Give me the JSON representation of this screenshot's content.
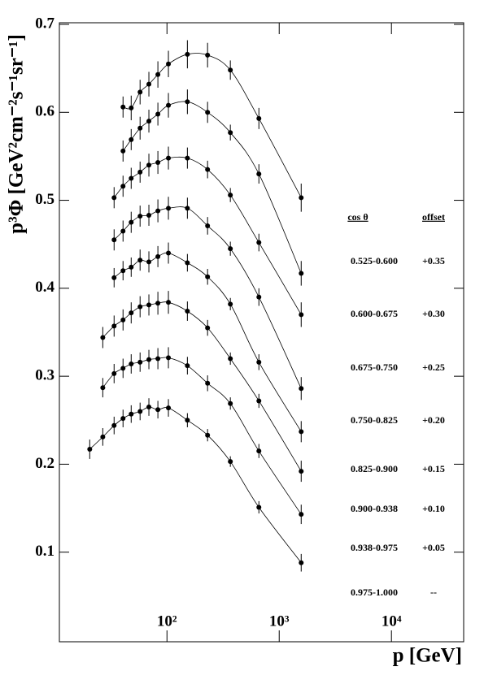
{
  "chart_data": {
    "type": "scatter",
    "y_label": "p³Φ [GeV²cm⁻²s⁻¹sr⁻¹]",
    "x_label": "p [GeV]",
    "log_x": true,
    "x": [
      20.5,
      26.8,
      33.8,
      40.6,
      48,
      57.6,
      69,
      83,
      103,
      152,
      230,
      367,
      659,
      1570
    ],
    "xlim": [
      11,
      44000
    ],
    "xticks": [
      {
        "value": 100,
        "label": "10²"
      },
      {
        "value": 1000,
        "label": "10³"
      },
      {
        "value": 10000,
        "label": "10⁴"
      }
    ],
    "ylim": [
      0,
      0.7
    ],
    "yticks": [
      0.1,
      0.2,
      0.3,
      0.4,
      0.5,
      0.6,
      0.7
    ],
    "legend_headers": [
      "cos θ",
      "offset"
    ],
    "series": [
      {
        "name": "0.525-0.600",
        "offset": "+0.35",
        "color": "#000000",
        "values": [
          null,
          null,
          null,
          0.606,
          0.605,
          0.623,
          0.632,
          0.643,
          0.655,
          0.666,
          0.665,
          0.648,
          0.593,
          0.503
        ],
        "errors": [
          null,
          null,
          null,
          0.012,
          0.014,
          0.014,
          0.014,
          0.015,
          0.015,
          0.016,
          0.014,
          0.011,
          0.012,
          0.016
        ]
      },
      {
        "name": "0.600-0.675",
        "offset": "+0.30",
        "color": "#000000",
        "values": [
          null,
          null,
          null,
          0.556,
          0.569,
          0.582,
          0.59,
          0.598,
          0.608,
          0.612,
          0.6,
          0.577,
          0.53,
          0.417
        ],
        "errors": [
          null,
          null,
          null,
          0.012,
          0.012,
          0.013,
          0.013,
          0.013,
          0.014,
          0.014,
          0.012,
          0.009,
          0.011,
          0.014
        ]
      },
      {
        "name": "0.675-0.750",
        "offset": "+0.25",
        "color": "#000000",
        "values": [
          null,
          null,
          0.503,
          0.516,
          0.525,
          0.532,
          0.54,
          0.543,
          0.548,
          0.548,
          0.535,
          0.506,
          0.452,
          0.37
        ],
        "errors": [
          null,
          null,
          0.012,
          0.012,
          0.012,
          0.012,
          0.013,
          0.013,
          0.013,
          0.012,
          0.01,
          0.008,
          0.01,
          0.014
        ]
      },
      {
        "name": "0.750-0.825",
        "offset": "+0.20",
        "color": "#000000",
        "values": [
          null,
          null,
          0.455,
          0.465,
          0.475,
          0.482,
          0.483,
          0.488,
          0.491,
          0.491,
          0.471,
          0.445,
          0.39,
          0.286
        ],
        "errors": [
          null,
          null,
          0.012,
          0.012,
          0.012,
          0.012,
          0.012,
          0.013,
          0.013,
          0.012,
          0.01,
          0.008,
          0.01,
          0.013
        ]
      },
      {
        "name": "0.825-0.900",
        "offset": "+0.15",
        "color": "#000000",
        "values": [
          null,
          null,
          0.412,
          0.42,
          0.424,
          0.432,
          0.43,
          0.436,
          0.44,
          0.429,
          0.413,
          0.382,
          0.316,
          0.237
        ],
        "errors": [
          null,
          null,
          0.011,
          0.011,
          0.011,
          0.012,
          0.012,
          0.012,
          0.012,
          0.01,
          0.009,
          0.007,
          0.009,
          0.012
        ]
      },
      {
        "name": "0.900-0.938",
        "offset": "+0.10",
        "color": "#000000",
        "values": [
          null,
          0.344,
          0.357,
          0.364,
          0.372,
          0.379,
          0.381,
          0.383,
          0.384,
          0.374,
          0.355,
          0.32,
          0.272,
          0.192
        ],
        "errors": [
          null,
          0.012,
          0.012,
          0.012,
          0.012,
          0.012,
          0.012,
          0.013,
          0.013,
          0.011,
          0.009,
          0.007,
          0.008,
          0.012
        ]
      },
      {
        "name": "0.938-0.975",
        "offset": "+0.05",
        "color": "#000000",
        "values": [
          null,
          0.287,
          0.303,
          0.309,
          0.314,
          0.316,
          0.319,
          0.32,
          0.321,
          0.312,
          0.292,
          0.269,
          0.215,
          0.143
        ],
        "errors": [
          null,
          0.011,
          0.011,
          0.011,
          0.011,
          0.011,
          0.011,
          0.012,
          0.012,
          0.01,
          0.009,
          0.007,
          0.008,
          0.011
        ]
      },
      {
        "name": "0.975-1.000",
        "offset": "--",
        "color": "#000000",
        "values": [
          0.217,
          0.231,
          0.244,
          0.252,
          0.257,
          0.26,
          0.265,
          0.262,
          0.264,
          0.25,
          0.233,
          0.203,
          0.151,
          0.088
        ],
        "errors": [
          0.011,
          0.01,
          0.01,
          0.01,
          0.01,
          0.01,
          0.01,
          0.01,
          0.01,
          0.008,
          0.007,
          0.006,
          0.007,
          0.01
        ]
      }
    ]
  }
}
